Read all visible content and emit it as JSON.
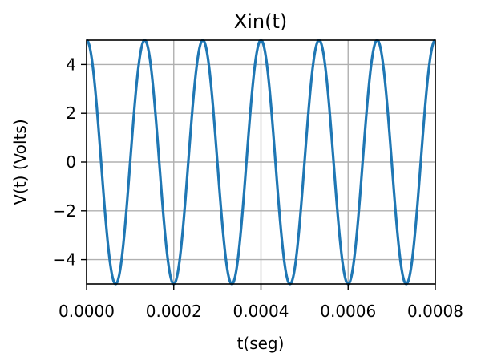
{
  "chart_data": {
    "type": "line",
    "title": "Xin(t)",
    "xlabel": "t(seg)",
    "ylabel": "V(t) (Volts)",
    "xlim": [
      0,
      0.0008
    ],
    "ylim": [
      -5,
      5
    ],
    "xticks": [
      0,
      0.0002,
      0.0004,
      0.0006,
      0.0008
    ],
    "xtick_labels": [
      "0.0000",
      "0.0002",
      "0.0004",
      "0.0006",
      "0.0008"
    ],
    "yticks": [
      -4,
      -2,
      0,
      2,
      4
    ],
    "ytick_labels": [
      "−4",
      "−2",
      "0",
      "2",
      "4"
    ],
    "grid": true,
    "series": [
      {
        "color": "#1f77b4",
        "function": "cosine",
        "amplitude": 5,
        "frequency_hz": 7500,
        "x_start": 0,
        "x_end": 0.0008
      }
    ]
  }
}
